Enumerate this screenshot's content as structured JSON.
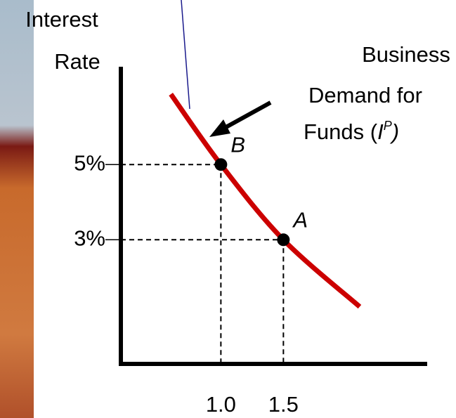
{
  "chart_data": {
    "type": "scatter",
    "y_label": [
      "Interest",
      "Rate"
    ],
    "xlim": [
      0.2,
      2.65
    ],
    "ylim": [
      -0.3,
      7.6
    ],
    "xticks": [
      {
        "value": 1.0,
        "label": "1.0"
      },
      1.5
    ],
    "yticks": [
      {
        "value": 3,
        "label": "3%"
      },
      {
        "value": 5,
        "label": "5%"
      }
    ],
    "curve": {
      "name": [
        "Business",
        "Demand for",
        "Funds (",
        "I",
        "P",
        ")"
      ],
      "color": "#cc0000",
      "x": [
        0.6,
        1.0,
        1.5,
        2.11
      ],
      "values": [
        6.87,
        5,
        3,
        1.22
      ]
    },
    "points": {
      "labels": [
        "B",
        "A"
      ],
      "x": [
        1.0,
        1.5
      ],
      "values": [
        5,
        3
      ],
      "color": "#000000"
    }
  }
}
